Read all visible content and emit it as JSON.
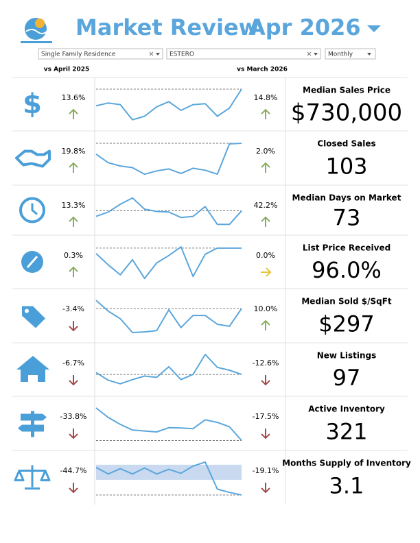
{
  "header": {
    "title": "Market Review",
    "period": "Apr 2026"
  },
  "filters": {
    "property_type": "Single Family Residence",
    "area": "ESTERO",
    "frequency": "Monthly"
  },
  "columns": {
    "yoy": "vs April 2025",
    "mom": "vs March 2026"
  },
  "colors": {
    "title": "#5aa6dc",
    "sparkline": "#5aa6dc",
    "band": "#c9d9f0",
    "up": "#8aac5e",
    "down": "#a24a4a",
    "flat": "#e8c33a"
  },
  "rows": [
    {
      "metric": "Median Sales Price",
      "value": "$730,000",
      "yoy": "13.6%",
      "yoy_direction": "up",
      "mom": "14.8%",
      "mom_direction": "up",
      "sparkline": [
        48,
        57,
        52,
        5,
        16,
        45,
        61,
        34,
        52,
        55,
        16,
        41,
        100
      ]
    },
    {
      "metric": "Closed Sales",
      "value": "103",
      "yoy": "19.8%",
      "yoy_direction": "up",
      "mom": "2.0%",
      "mom_direction": "up",
      "sparkline": [
        65,
        39,
        29,
        24,
        4,
        14,
        20,
        6,
        22,
        16,
        4,
        96,
        98
      ]
    },
    {
      "metric": "Median Days on Market",
      "value": "73",
      "yoy": "13.3%",
      "yoy_direction": "up",
      "mom": "42.2%",
      "mom_direction": "up",
      "sparkline": [
        32,
        47,
        74,
        96,
        57,
        49,
        47,
        28,
        32,
        66,
        4,
        4,
        51
      ]
    },
    {
      "metric": "List Price Received",
      "value": "96.0%",
      "yoy": "0.3%",
      "yoy_direction": "up",
      "mom": "0.0%",
      "mom_direction": "flat",
      "sparkline": [
        79,
        44,
        13,
        60,
        2,
        50,
        73,
        100,
        8,
        77,
        96,
        96,
        96
      ]
    },
    {
      "metric": "Median Sold $/SqFt",
      "value": "$297",
      "yoy": "-3.4%",
      "yoy_direction": "down",
      "mom": "10.0%",
      "mom_direction": "up",
      "sparkline": [
        100,
        67,
        44,
        2,
        4,
        8,
        71,
        17,
        54,
        54,
        27,
        21,
        75
      ]
    },
    {
      "metric": "New Listings",
      "value": "97",
      "yoy": "-6.7%",
      "yoy_direction": "down",
      "mom": "-12.6%",
      "mom_direction": "down",
      "sparkline": [
        44,
        20,
        9,
        22,
        33,
        29,
        62,
        22,
        38,
        100,
        60,
        51,
        38
      ]
    },
    {
      "metric": "Active Inventory",
      "value": "321",
      "yoy": "-33.8%",
      "yoy_direction": "down",
      "mom": "-17.5%",
      "mom_direction": "down",
      "sparkline": [
        100,
        71,
        50,
        33,
        30,
        27,
        40,
        39,
        37,
        64,
        56,
        43,
        1
      ]
    },
    {
      "metric": "Months Supply of Inventory",
      "value": "3.1",
      "yoy": "-44.7%",
      "yoy_direction": "down",
      "mom": "-19.1%",
      "mom_direction": "down",
      "sparkline": [
        84,
        64,
        80,
        64,
        82,
        64,
        78,
        66,
        88,
        100,
        18,
        8,
        0
      ],
      "band": [
        46,
        92
      ]
    }
  ]
}
